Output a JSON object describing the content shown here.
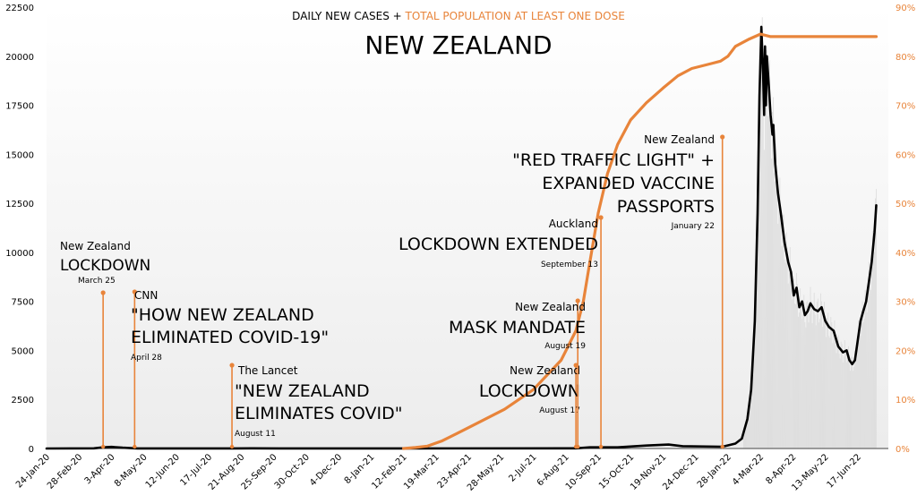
{
  "chart_data": {
    "type": "line",
    "title": "NEW ZEALAND",
    "subtitle_prefix": "DAILY NEW CASES + ",
    "subtitle_highlight": "TOTAL POPULATION AT LEAST ONE DOSE",
    "colors": {
      "cases": "#000000",
      "vaccination": "#e8843a",
      "bars": "#dcdcdc",
      "annotation": "#e8843a"
    },
    "grid": false,
    "x_range": [
      "2020-01-24",
      "2022-07-20"
    ],
    "y_left": {
      "min": 0,
      "max": 22500,
      "ticks": [
        "0",
        "2500",
        "5000",
        "7500",
        "10000",
        "12500",
        "15000",
        "17500",
        "20000",
        "22500"
      ]
    },
    "y_right": {
      "min": 0,
      "max": 90,
      "ticks": [
        "0%",
        "10%",
        "20%",
        "30%",
        "40%",
        "50%",
        "60%",
        "70%",
        "80%",
        "90%"
      ]
    },
    "x_ticks": [
      {
        "date": "2020-01-24",
        "label": "24-Jan-20"
      },
      {
        "date": "2020-02-28",
        "label": "28-Feb-20"
      },
      {
        "date": "2020-04-03",
        "label": "3-Apr-20"
      },
      {
        "date": "2020-05-08",
        "label": "8-May-20"
      },
      {
        "date": "2020-06-12",
        "label": "12-Jun-20"
      },
      {
        "date": "2020-07-17",
        "label": "17-Jul-20"
      },
      {
        "date": "2020-08-21",
        "label": "21-Aug-20"
      },
      {
        "date": "2020-09-25",
        "label": "25-Sep-20"
      },
      {
        "date": "2020-10-30",
        "label": "30-Oct-20"
      },
      {
        "date": "2020-12-04",
        "label": "4-Dec-20"
      },
      {
        "date": "2021-01-08",
        "label": "8-Jan-21"
      },
      {
        "date": "2021-02-12",
        "label": "12-Feb-21"
      },
      {
        "date": "2021-03-19",
        "label": "19-Mar-21"
      },
      {
        "date": "2021-04-23",
        "label": "23-Apr-21"
      },
      {
        "date": "2021-05-28",
        "label": "28-May-21"
      },
      {
        "date": "2021-07-02",
        "label": "2-Jul-21"
      },
      {
        "date": "2021-08-06",
        "label": "6-Aug-21"
      },
      {
        "date": "2021-09-10",
        "label": "10-Sep-21"
      },
      {
        "date": "2021-10-15",
        "label": "15-Oct-21"
      },
      {
        "date": "2021-11-19",
        "label": "19-Nov-21"
      },
      {
        "date": "2021-12-24",
        "label": "24-Dec-21"
      },
      {
        "date": "2022-01-28",
        "label": "28-Jan-22"
      },
      {
        "date": "2022-03-04",
        "label": "4-Mar-22"
      },
      {
        "date": "2022-04-08",
        "label": "8-Apr-22"
      },
      {
        "date": "2022-05-13",
        "label": "13-May-22"
      },
      {
        "date": "2022-06-17",
        "label": "17-Jun-22"
      }
    ],
    "series": [
      {
        "name": "Daily new cases",
        "axis": "left",
        "points": [
          [
            "2020-01-24",
            0
          ],
          [
            "2020-03-15",
            10
          ],
          [
            "2020-03-25",
            60
          ],
          [
            "2020-04-03",
            80
          ],
          [
            "2020-04-15",
            40
          ],
          [
            "2020-05-01",
            5
          ],
          [
            "2020-08-12",
            5
          ],
          [
            "2020-09-01",
            10
          ],
          [
            "2020-10-01",
            3
          ],
          [
            "2021-02-12",
            3
          ],
          [
            "2021-08-17",
            10
          ],
          [
            "2021-09-01",
            60
          ],
          [
            "2021-10-01",
            60
          ],
          [
            "2021-11-01",
            150
          ],
          [
            "2021-11-25",
            200
          ],
          [
            "2021-12-10",
            120
          ],
          [
            "2022-01-22",
            90
          ],
          [
            "2022-02-05",
            250
          ],
          [
            "2022-02-12",
            500
          ],
          [
            "2022-02-18",
            1500
          ],
          [
            "2022-02-22",
            3000
          ],
          [
            "2022-02-26",
            6500
          ],
          [
            "2022-03-01",
            12000
          ],
          [
            "2022-03-03",
            18000
          ],
          [
            "2022-03-05",
            21500
          ],
          [
            "2022-03-07",
            19000
          ],
          [
            "2022-03-08",
            17000
          ],
          [
            "2022-03-09",
            20500
          ],
          [
            "2022-03-10",
            17500
          ],
          [
            "2022-03-11",
            20000
          ],
          [
            "2022-03-13",
            18500
          ],
          [
            "2022-03-15",
            17000
          ],
          [
            "2022-03-17",
            16000
          ],
          [
            "2022-03-18",
            16500
          ],
          [
            "2022-03-20",
            14500
          ],
          [
            "2022-03-23",
            13000
          ],
          [
            "2022-03-26",
            12000
          ],
          [
            "2022-03-30",
            10500
          ],
          [
            "2022-04-03",
            9500
          ],
          [
            "2022-04-06",
            9000
          ],
          [
            "2022-04-09",
            7800
          ],
          [
            "2022-04-12",
            8200
          ],
          [
            "2022-04-15",
            7200
          ],
          [
            "2022-04-18",
            7500
          ],
          [
            "2022-04-21",
            6800
          ],
          [
            "2022-04-24",
            7000
          ],
          [
            "2022-04-27",
            7400
          ],
          [
            "2022-05-01",
            7100
          ],
          [
            "2022-05-05",
            7000
          ],
          [
            "2022-05-09",
            7200
          ],
          [
            "2022-05-13",
            6500
          ],
          [
            "2022-05-17",
            6200
          ],
          [
            "2022-05-22",
            6000
          ],
          [
            "2022-05-27",
            5200
          ],
          [
            "2022-06-01",
            4900
          ],
          [
            "2022-06-05",
            5000
          ],
          [
            "2022-06-08",
            4500
          ],
          [
            "2022-06-11",
            4300
          ],
          [
            "2022-06-14",
            4500
          ],
          [
            "2022-06-17",
            5500
          ],
          [
            "2022-06-20",
            6500
          ],
          [
            "2022-06-23",
            7000
          ],
          [
            "2022-06-26",
            7500
          ],
          [
            "2022-06-29",
            8500
          ],
          [
            "2022-07-02",
            9500
          ],
          [
            "2022-07-05",
            11000
          ],
          [
            "2022-07-07",
            12400
          ]
        ]
      },
      {
        "name": "Total population at least one dose",
        "axis": "right",
        "points": [
          [
            "2021-02-12",
            0
          ],
          [
            "2021-02-25",
            0.2
          ],
          [
            "2021-03-10",
            0.5
          ],
          [
            "2021-03-25",
            1.5
          ],
          [
            "2021-04-10",
            3
          ],
          [
            "2021-05-01",
            5
          ],
          [
            "2021-06-01",
            8
          ],
          [
            "2021-07-02",
            12
          ],
          [
            "2021-08-01",
            18
          ],
          [
            "2021-08-17",
            24
          ],
          [
            "2021-08-25",
            30
          ],
          [
            "2021-09-01",
            38
          ],
          [
            "2021-09-10",
            48
          ],
          [
            "2021-09-20",
            56
          ],
          [
            "2021-10-01",
            62
          ],
          [
            "2021-10-15",
            67
          ],
          [
            "2021-11-01",
            70.5
          ],
          [
            "2021-11-19",
            73.5
          ],
          [
            "2021-12-05",
            76
          ],
          [
            "2021-12-20",
            77.5
          ],
          [
            "2022-01-10",
            78.5
          ],
          [
            "2022-01-20",
            79
          ],
          [
            "2022-01-28",
            80
          ],
          [
            "2022-02-05",
            82
          ],
          [
            "2022-02-20",
            83.5
          ],
          [
            "2022-03-04",
            84.5
          ],
          [
            "2022-03-15",
            84
          ],
          [
            "2022-04-01",
            84
          ],
          [
            "2022-07-07",
            84
          ]
        ]
      }
    ],
    "bars_note_series": "Daily new cases (light bars)",
    "annotations": [
      {
        "date": "2020-03-25",
        "kicker": "New Zealand",
        "headline": [
          "LOCKDOWN"
        ],
        "date_label": "March 25"
      },
      {
        "date": "2020-04-28",
        "kicker": "CNN",
        "headline": [
          "\"HOW NEW ZEALAND",
          "ELIMINATED COVID-19\""
        ],
        "date_label": "April 28"
      },
      {
        "date": "2020-08-11",
        "kicker": "The Lancet",
        "headline": [
          "\"NEW ZEALAND",
          "ELIMINATES COVID\""
        ],
        "date_label": "August 11"
      },
      {
        "date": "2021-08-17",
        "kicker": "New Zealand",
        "headline": [
          "LOCKDOWN"
        ],
        "date_label": "August 17"
      },
      {
        "date": "2021-08-19",
        "kicker": "New Zealand",
        "headline": [
          "MASK MANDATE"
        ],
        "date_label": "August 19"
      },
      {
        "date": "2021-09-13",
        "kicker": "Auckland",
        "headline": [
          "LOCKDOWN EXTENDED"
        ],
        "date_label": "September 13"
      },
      {
        "date": "2022-01-22",
        "kicker": "New Zealand",
        "headline": [
          "\"RED TRAFFIC LIGHT\" +",
          "EXPANDED VACCINE",
          "PASSPORTS"
        ],
        "date_label": "January 22"
      }
    ]
  }
}
